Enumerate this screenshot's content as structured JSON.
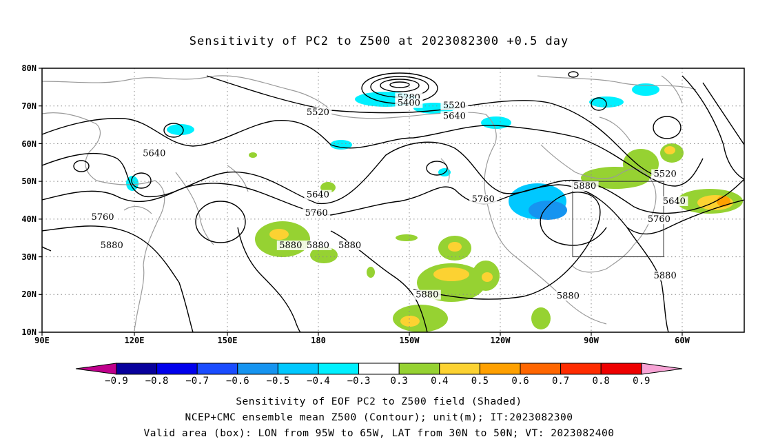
{
  "title": "Sensitivity of PC2 to Z500 at 2023082300 +0.5 day",
  "map": {
    "lon_labels": [
      "90E",
      "120E",
      "150E",
      "180",
      "150W",
      "120W",
      "90W",
      "60W"
    ],
    "lat_labels": [
      "80N",
      "70N",
      "60N",
      "50N",
      "40N",
      "30N",
      "20N",
      "10N"
    ],
    "contour_labels": [
      {
        "text": "5280",
        "lon": -149,
        "lat": 71.5
      },
      {
        "text": "5400",
        "lon": -149,
        "lat": 70.0
      },
      {
        "text": "5520",
        "lon": -179,
        "lat": 67.6
      },
      {
        "text": "5520",
        "lon": -134,
        "lat": 69.4
      },
      {
        "text": "5520",
        "lon": -64.5,
        "lat": 51.2
      },
      {
        "text": "5640",
        "lon": 127,
        "lat": 56.7
      },
      {
        "text": "5640",
        "lon": -134,
        "lat": 66.6
      },
      {
        "text": "5640",
        "lon": -179,
        "lat": 45.7
      },
      {
        "text": "5640",
        "lon": -61.5,
        "lat": 44.0
      },
      {
        "text": "5760",
        "lon": 110,
        "lat": 39.8
      },
      {
        "text": "5760",
        "lon": -179.5,
        "lat": 40.9
      },
      {
        "text": "5760",
        "lon": -124.5,
        "lat": 44.5
      },
      {
        "text": "5760",
        "lon": -66.5,
        "lat": 39.2
      },
      {
        "text": "5880",
        "lon": 113,
        "lat": 32.3
      },
      {
        "text": "5880",
        "lon": 172,
        "lat": 32.3
      },
      {
        "text": "5880",
        "lon": 181,
        "lat": 32.3
      },
      {
        "text": "5880",
        "lon": -168.5,
        "lat": 32.3
      },
      {
        "text": "5880",
        "lon": -91,
        "lat": 48.0
      },
      {
        "text": "5880",
        "lon": -143,
        "lat": 19.2
      },
      {
        "text": "5880",
        "lon": -96.5,
        "lat": 18.9
      },
      {
        "text": "5880",
        "lon": -64.5,
        "lat": 24.3
      }
    ],
    "valid_box": {
      "lon_west": -95,
      "lon_east": -65,
      "lat_south": 30,
      "lat_north": 50
    },
    "colors": {
      "coast": "#9a9a9a",
      "contour": "#000000",
      "grid": "#888888"
    }
  },
  "colorbar": {
    "labels": [
      "−0.9",
      "−0.8",
      "−0.7",
      "−0.6",
      "−0.5",
      "−0.4",
      "−0.3",
      "0.3",
      "0.4",
      "0.5",
      "0.6",
      "0.7",
      "0.8",
      "0.9"
    ],
    "under_color": "#c0008c",
    "over_color": "#f7a3d5",
    "colors": [
      "#08009c",
      "#0000ec",
      "#1a4cff",
      "#1694f0",
      "#00c8ff",
      "#00f0ff",
      "#ffffff",
      "#96d232",
      "#fcd232",
      "#ffa000",
      "#ff6600",
      "#ff2c00",
      "#ee0000"
    ]
  },
  "captions": [
    "Sensitivity of EOF PC2 to Z500 field (Shaded)",
    "NCEP+CMC ensemble mean Z500 (Contour); unit(m); IT:2023082300",
    "Valid area (box): LON from 95W to 65W, LAT from 30N to 50N; VT: 2023082400"
  ]
}
